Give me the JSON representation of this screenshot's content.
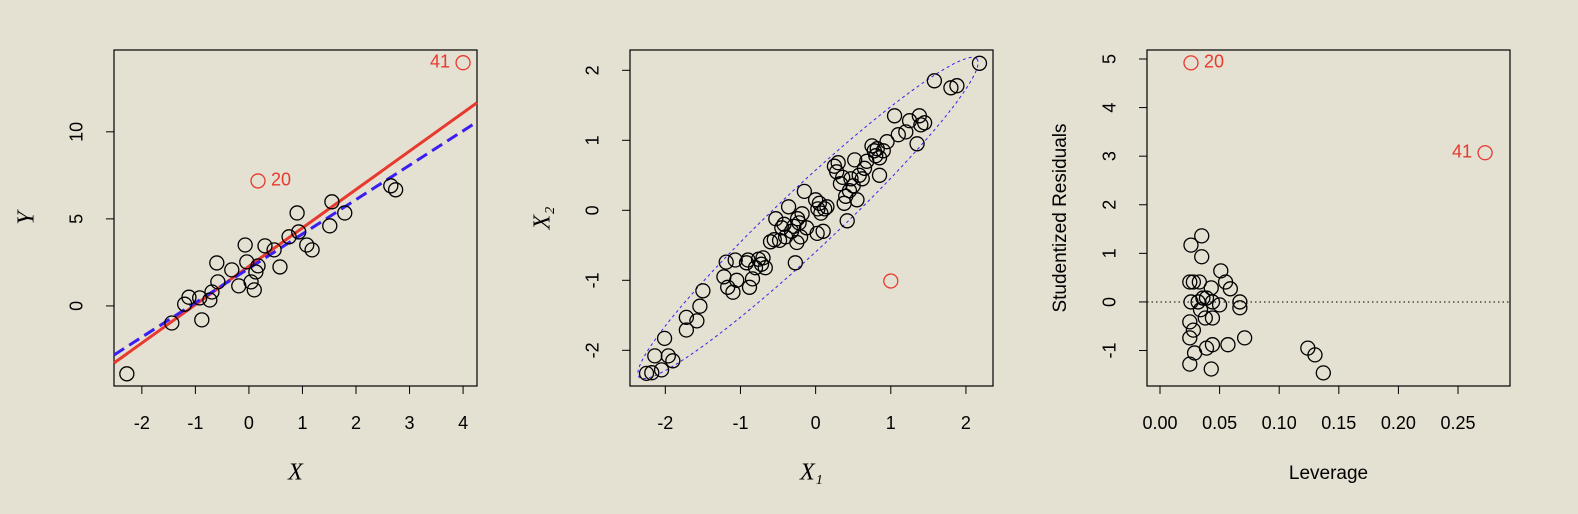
{
  "chart_data": [
    {
      "type": "scatter",
      "xlabel": "X",
      "ylabel": "Y",
      "xlim": [
        -2.52,
        4.26
      ],
      "ylim": [
        -4.6,
        14.7
      ],
      "xticks": [
        -2,
        -1,
        0,
        1,
        2,
        3,
        4
      ],
      "yticks": [
        0,
        5,
        10
      ],
      "series": [
        {
          "color": "#000000",
          "x": [
            -2.28,
            -1.44,
            -1.2,
            -1.12,
            -0.92,
            -0.88,
            -0.73,
            -0.69,
            -0.6,
            -0.58,
            -0.32,
            -0.19,
            -0.07,
            -0.04,
            0.04,
            0.1,
            0.13,
            0.17,
            0.3,
            0.47,
            0.58,
            0.75,
            0.9,
            0.93,
            1.08,
            1.18,
            1.51,
            1.55,
            1.79,
            2.65,
            2.74
          ],
          "values": [
            -3.9,
            -0.98,
            0.1,
            0.5,
            0.46,
            -0.8,
            0.34,
            0.8,
            2.47,
            1.38,
            2.07,
            1.15,
            3.5,
            2.53,
            1.38,
            0.92,
            1.95,
            2.3,
            3.45,
            3.22,
            2.24,
            3.97,
            5.34,
            4.25,
            3.5,
            3.22,
            4.6,
            5.98,
            5.34,
            6.9,
            6.67
          ]
        },
        {
          "color": "#e8392f",
          "x": [
            4.0,
            0.17
          ],
          "values": [
            13.97,
            7.18
          ],
          "point_labels": [
            "41",
            "20"
          ]
        }
      ],
      "lines": [
        {
          "color": "#e8392f",
          "dash": false,
          "x": [
            -2.52,
            4.26
          ],
          "values": [
            -3.28,
            11.67
          ]
        },
        {
          "color": "#3b1ff0",
          "dash": true,
          "x": [
            -2.52,
            4.26
          ],
          "values": [
            -2.82,
            10.57
          ]
        }
      ]
    },
    {
      "type": "scatter",
      "xlabel": "X₁",
      "ylabel": "X₂",
      "xlim": [
        -2.47,
        2.36
      ],
      "ylim": [
        -2.51,
        2.29
      ],
      "xticks": [
        -2,
        -1,
        0,
        1,
        2
      ],
      "yticks": [
        -2,
        -1,
        0,
        1,
        2
      ],
      "series": [
        {
          "color": "#000000",
          "x": [
            -2.25,
            -2.18,
            -2.14,
            -2.05,
            -2.01,
            -1.96,
            -1.9,
            -1.72,
            -1.72,
            -1.58,
            -1.54,
            -1.5,
            -1.22,
            -1.19,
            -1.17,
            -1.1,
            -1.07,
            -1.05,
            -0.92,
            -0.9,
            -0.88,
            -0.84,
            -0.8,
            -0.76,
            -0.72,
            -0.7,
            -0.67,
            -0.6,
            -0.55,
            -0.53,
            -0.48,
            -0.45,
            -0.42,
            -0.4,
            -0.36,
            -0.32,
            -0.29,
            -0.27,
            -0.25,
            -0.24,
            -0.22,
            -0.2,
            -0.18,
            -0.15,
            -0.12,
            0.0,
            0.02,
            0.03,
            0.05,
            0.07,
            0.1,
            0.12,
            0.15,
            0.25,
            0.28,
            0.3,
            0.33,
            0.36,
            0.38,
            0.4,
            0.42,
            0.45,
            0.47,
            0.5,
            0.52,
            0.55,
            0.58,
            0.62,
            0.65,
            0.68,
            0.75,
            0.78,
            0.8,
            0.82,
            0.85,
            0.85,
            0.9,
            0.95,
            1.05,
            1.1,
            1.2,
            1.25,
            1.35,
            1.38,
            1.4,
            1.45,
            1.58,
            1.8,
            1.88,
            2.18
          ],
          "values": [
            -2.33,
            -2.32,
            -2.08,
            -2.28,
            -1.83,
            -2.08,
            -2.15,
            -1.71,
            -1.53,
            -1.58,
            -1.37,
            -1.15,
            -0.95,
            -0.74,
            -1.1,
            -1.17,
            -0.71,
            -1.0,
            -0.75,
            -0.71,
            -1.1,
            -0.98,
            -0.82,
            -0.7,
            -0.77,
            -0.68,
            -0.82,
            -0.45,
            -0.42,
            -0.12,
            -0.43,
            -0.25,
            -0.2,
            -0.38,
            0.05,
            -0.3,
            -0.23,
            -0.75,
            -0.46,
            -0.12,
            -0.18,
            -0.38,
            -0.05,
            0.27,
            -0.25,
            0.15,
            -0.33,
            0.02,
            0.1,
            -0.04,
            -0.3,
            0.02,
            0.05,
            0.63,
            0.55,
            0.68,
            0.38,
            0.47,
            0.1,
            0.2,
            -0.15,
            0.28,
            0.45,
            0.35,
            0.72,
            0.15,
            0.5,
            0.45,
            0.6,
            0.7,
            0.92,
            0.85,
            0.78,
            0.88,
            0.75,
            0.5,
            0.85,
            0.98,
            1.35,
            1.08,
            1.12,
            1.28,
            0.95,
            1.35,
            1.22,
            1.25,
            1.85,
            1.75,
            1.78,
            2.1
          ]
        },
        {
          "color": "#e8392f",
          "x": [
            1.0
          ],
          "values": [
            -1.01
          ]
        }
      ]
    },
    {
      "type": "scatter",
      "xlabel": "Leverage",
      "ylabel": "Studentized Residuals",
      "xlim": [
        -0.0109,
        0.2936
      ],
      "ylim": [
        -1.73,
        5.185
      ],
      "xticks": [
        {
          "value": 0,
          "label": "0.00"
        },
        {
          "value": 0.05,
          "label": "0.05"
        },
        {
          "value": 0.1,
          "label": "0.10"
        },
        {
          "value": 0.15,
          "label": "0.15"
        },
        {
          "value": 0.2,
          "label": "0.20"
        },
        {
          "value": 0.25,
          "label": "0.25"
        }
      ],
      "yticks": [
        -1,
        0,
        1,
        2,
        3,
        4,
        5
      ],
      "hline": 0,
      "series": [
        {
          "color": "#000000",
          "x": [
            0.026,
            0.035,
            0.035,
            0.025,
            0.028,
            0.033,
            0.026,
            0.032,
            0.036,
            0.039,
            0.044,
            0.043,
            0.051,
            0.055,
            0.059,
            0.05,
            0.067,
            0.067,
            0.025,
            0.028,
            0.025,
            0.029,
            0.025,
            0.038,
            0.044,
            0.039,
            0.044,
            0.057,
            0.071,
            0.043,
            0.124,
            0.13,
            0.137,
            0.034
          ],
          "values": [
            1.17,
            1.36,
            0.93,
            0.41,
            0.41,
            0.41,
            0,
            0,
            0.08,
            0.08,
            0,
            0.29,
            0.64,
            0.41,
            0.27,
            -0.06,
            0,
            -0.12,
            -0.41,
            -0.58,
            -0.74,
            -1.05,
            -1.28,
            -0.33,
            -0.33,
            -0.95,
            -0.88,
            -0.88,
            -0.74,
            -1.38,
            -0.95,
            -1.09,
            -1.46,
            -0.16
          ]
        },
        {
          "color": "#e8392f",
          "x": [
            0.026,
            0.2727
          ],
          "values": [
            4.92,
            3.07
          ],
          "point_labels": [
            "20",
            "41"
          ]
        }
      ]
    }
  ]
}
